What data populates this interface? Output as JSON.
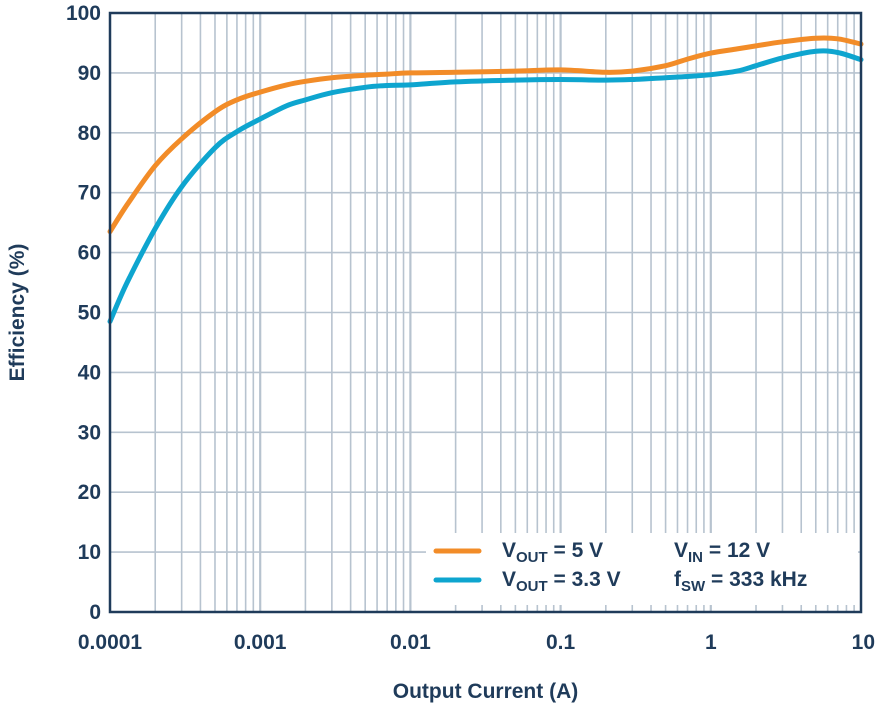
{
  "chart_data": {
    "type": "line",
    "xscale": "log",
    "xlim": [
      0.0001,
      10
    ],
    "ylim": [
      0,
      100
    ],
    "grid": true,
    "xlabel": "Output Current (A)",
    "ylabel": "Efficiency (%)",
    "x_ticks": [
      "0.0001",
      "0.001",
      "0.01",
      "0.1",
      "1",
      "10"
    ],
    "y_ticks": [
      "0",
      "10",
      "20",
      "30",
      "40",
      "50",
      "60",
      "70",
      "80",
      "90",
      "100"
    ],
    "legend_position": "bottom-right",
    "series": [
      {
        "name_main": "V",
        "name_sub": "OUT",
        "name_rest": " = 5 V",
        "color": "#f28c28",
        "x": [
          0.0001,
          0.00013,
          0.0002,
          0.0003,
          0.0005,
          0.0007,
          0.001,
          0.0015,
          0.002,
          0.003,
          0.005,
          0.007,
          0.01,
          0.02,
          0.05,
          0.1,
          0.2,
          0.3,
          0.5,
          0.7,
          1,
          1.5,
          2,
          3,
          5,
          7,
          10
        ],
        "y": [
          63.5,
          68,
          74.5,
          79,
          83.5,
          85.5,
          86.8,
          88,
          88.6,
          89.2,
          89.6,
          89.8,
          90,
          90.1,
          90.3,
          90.5,
          90.1,
          90.3,
          91.2,
          92.3,
          93.3,
          94,
          94.5,
          95.2,
          95.8,
          95.7,
          94.8
        ]
      },
      {
        "name_main": "V",
        "name_sub": "OUT",
        "name_rest": " = 3.3 V",
        "color": "#0ea5cf",
        "x": [
          0.0001,
          0.00013,
          0.0002,
          0.0003,
          0.0005,
          0.0007,
          0.001,
          0.0015,
          0.002,
          0.003,
          0.005,
          0.007,
          0.01,
          0.02,
          0.05,
          0.1,
          0.2,
          0.3,
          0.5,
          0.7,
          1,
          1.5,
          2,
          3,
          5,
          7,
          10
        ],
        "y": [
          48.5,
          55,
          64,
          71,
          77.5,
          80.2,
          82.3,
          84.5,
          85.5,
          86.7,
          87.6,
          87.9,
          88,
          88.5,
          88.8,
          88.9,
          88.8,
          88.9,
          89.2,
          89.4,
          89.7,
          90.3,
          91.2,
          92.5,
          93.6,
          93.4,
          92.2
        ]
      }
    ],
    "annotations": [
      {
        "main": "V",
        "sub": "IN",
        "rest": " = 12 V"
      },
      {
        "main": "f",
        "sub": "SW",
        "rest": " = 333 kHz"
      }
    ]
  }
}
